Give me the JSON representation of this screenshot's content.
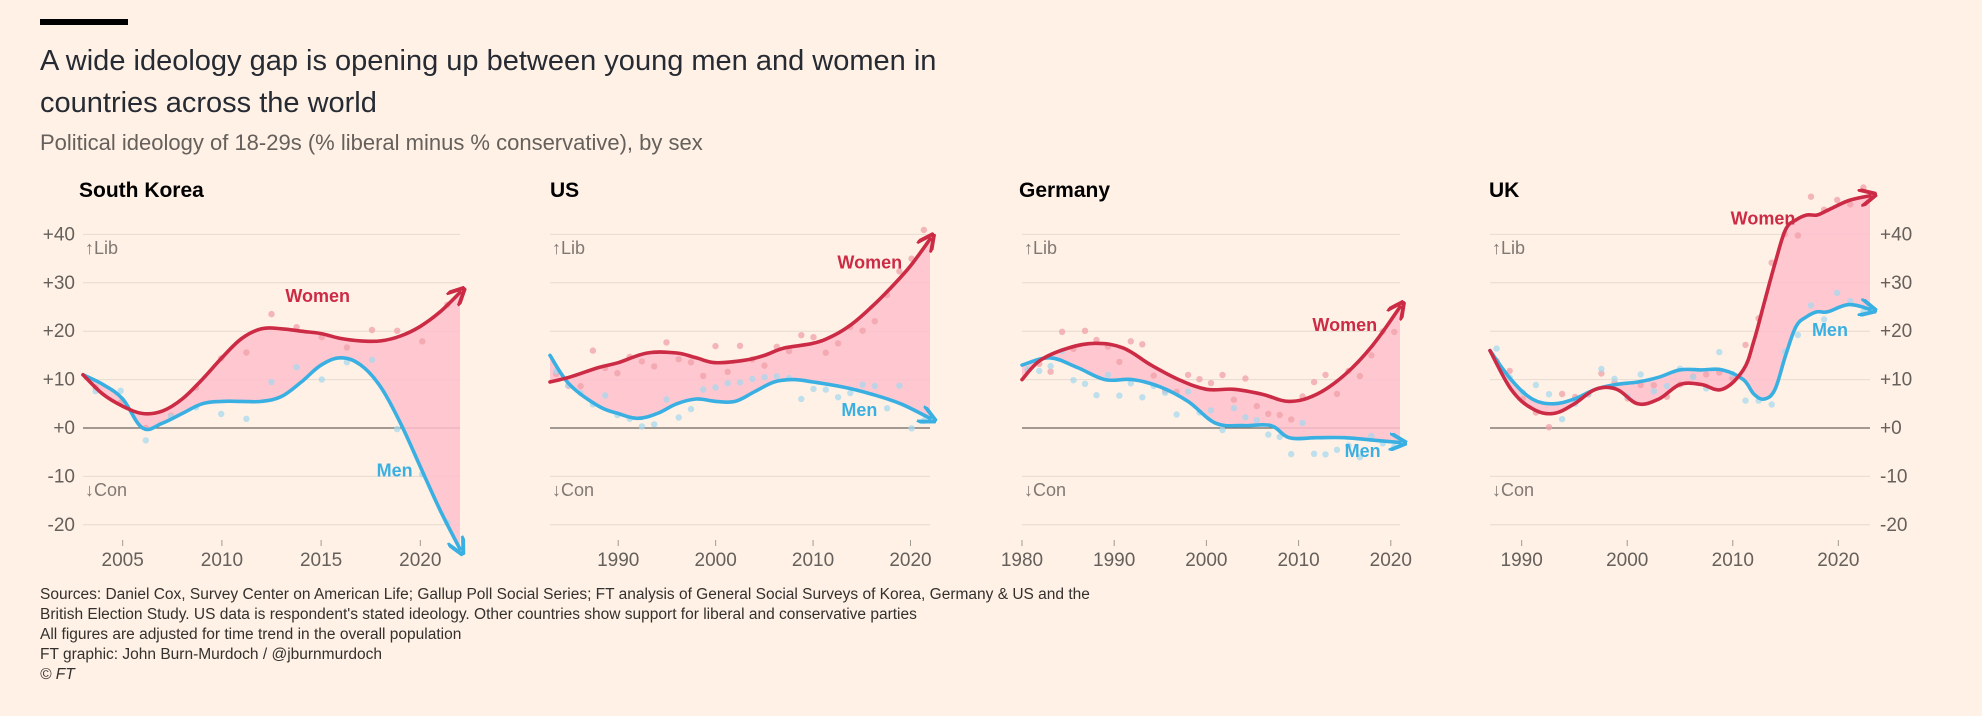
{
  "title": "A wide ideology gap is opening up between young men and women in countries across the world",
  "subtitle": "Political ideology of 18-29s (% liberal minus % conservative), by sex",
  "footer": {
    "sources": "Sources: Daniel Cox, Survey Center on American Life; Gallup Poll Social Series; FT analysis of General Social Surveys of Korea, Germany & US and the British Election Study. US data is respondent's stated ideology. Other countries show support for liberal and conservative parties",
    "adjustment_note": "All figures are adjusted for time trend in the overall population",
    "credit": "FT graphic: John Burn-Murdoch / @jburnmurdoch",
    "copyright": "© FT"
  },
  "colors": {
    "background": "#fff1e5",
    "women": "#cc2b45",
    "men": "#3ab0e2",
    "gap_fill": "#ffc0cc",
    "women_dots": "#f0a0a8",
    "men_dots": "#a8d8ee",
    "zero_line": "#6b6560",
    "gridline": "#e6dbd0"
  },
  "chart_data": [
    {
      "type": "line",
      "title": "South Korea",
      "y_ticks": [
        "+40",
        "+30",
        "+20",
        "+10",
        "+0",
        "-10",
        "-20"
      ],
      "y_tick_values": [
        40,
        30,
        20,
        10,
        0,
        -10,
        -20
      ],
      "y_axis_side": "left",
      "ylim": [
        -23,
        43
      ],
      "xlim": [
        2003,
        2022
      ],
      "x_ticks": [
        2005,
        2010,
        2015,
        2020
      ],
      "annotations": {
        "lib": "↑Lib",
        "con": "↓Con"
      },
      "series": [
        {
          "name": "Women",
          "x": [
            2003,
            2004,
            2005,
            2006,
            2007,
            2008,
            2009,
            2010,
            2011,
            2012,
            2013,
            2014,
            2015,
            2016,
            2017,
            2018,
            2019,
            2020,
            2021,
            2022
          ],
          "y": [
            11,
            7,
            4.5,
            3,
            3.5,
            6,
            10,
            14.5,
            18.5,
            20.5,
            20.5,
            20,
            19.5,
            18.5,
            18,
            18,
            19,
            21,
            24,
            28
          ]
        },
        {
          "name": "Men",
          "x": [
            2003,
            2004,
            2005,
            2006,
            2007,
            2008,
            2009,
            2010,
            2011,
            2012,
            2013,
            2014,
            2015,
            2016,
            2017,
            2018,
            2019,
            2020,
            2021,
            2022
          ],
          "y": [
            11,
            9,
            6,
            0,
            1,
            3,
            5,
            5.5,
            5.5,
            5.5,
            6.5,
            9.5,
            13,
            14.5,
            13,
            8.5,
            1,
            -8,
            -17,
            -25
          ]
        }
      ],
      "label_women": {
        "text": "Women",
        "x": 2013.2,
        "y": 26
      },
      "label_men": {
        "text": "Men",
        "x": 2017.8,
        "y": -10
      }
    },
    {
      "type": "line",
      "title": "US",
      "y_ticks": [],
      "y_tick_values": [
        40,
        30,
        20,
        10,
        0,
        -10,
        -20
      ],
      "ylim": [
        -23,
        43
      ],
      "xlim": [
        1983,
        2022
      ],
      "x_ticks": [
        1990,
        2000,
        2010,
        2020
      ],
      "annotations": {
        "lib": "↑Lib",
        "con": "↓Con"
      },
      "series": [
        {
          "name": "Women",
          "x": [
            1983,
            1985,
            1988,
            1990,
            1993,
            1996,
            1998,
            2000,
            2003,
            2005,
            2007,
            2010,
            2012,
            2014,
            2016,
            2018,
            2020,
            2022
          ],
          "y": [
            9.5,
            10.5,
            12.5,
            13.5,
            15.5,
            15.5,
            14.5,
            13.5,
            14,
            15,
            16.5,
            17.5,
            19,
            21.5,
            25,
            29,
            33.5,
            39
          ]
        },
        {
          "name": "Men",
          "x": [
            1983,
            1985,
            1988,
            1990,
            1992,
            1994,
            1996,
            1998,
            2000,
            2002,
            2004,
            2006,
            2008,
            2010,
            2013,
            2016,
            2019,
            2022
          ],
          "y": [
            15,
            9,
            4.5,
            3,
            2,
            3,
            5,
            6,
            5.5,
            5.5,
            7.5,
            9.5,
            10,
            9.5,
            8.5,
            7,
            5,
            2
          ]
        }
      ],
      "label_women": {
        "text": "Women",
        "x": 2012.5,
        "y": 33
      },
      "label_men": {
        "text": "Men",
        "x": 2012.9,
        "y": 2.5
      }
    },
    {
      "type": "line",
      "title": "Germany",
      "y_ticks": [],
      "y_tick_values": [
        40,
        30,
        20,
        10,
        0,
        -10,
        -20
      ],
      "ylim": [
        -23,
        43
      ],
      "xlim": [
        1980,
        2021
      ],
      "x_ticks": [
        1980,
        1990,
        2000,
        2010,
        2020
      ],
      "annotations": {
        "lib": "↑Lib",
        "con": "↓Con"
      },
      "series": [
        {
          "name": "Women",
          "x": [
            1980,
            1982,
            1985,
            1988,
            1991,
            1994,
            1997,
            2000,
            2003,
            2006,
            2009,
            2012,
            2015,
            2018,
            2021
          ],
          "y": [
            10,
            14,
            16.5,
            17.5,
            16.5,
            13,
            10,
            8,
            8,
            7,
            5.5,
            7,
            11,
            17,
            25
          ]
        },
        {
          "name": "Men",
          "x": [
            1980,
            1983,
            1986,
            1989,
            1992,
            1995,
            1998,
            2001,
            2004,
            2007,
            2009,
            2012,
            2015,
            2018,
            2021
          ],
          "y": [
            13,
            14.5,
            12.5,
            10,
            10,
            8.5,
            5.5,
            1,
            0.5,
            0.5,
            -2,
            -2,
            -2,
            -2.5,
            -3
          ]
        }
      ],
      "label_women": {
        "text": "Women",
        "x": 2011.5,
        "y": 20
      },
      "label_men": {
        "text": "Men",
        "x": 2015,
        "y": -6
      }
    },
    {
      "type": "line",
      "title": "UK",
      "y_ticks": [
        "+40",
        "+30",
        "+20",
        "+10",
        "+0",
        "-10",
        "-20"
      ],
      "y_tick_values": [
        40,
        30,
        20,
        10,
        0,
        -10,
        -20
      ],
      "y_axis_side": "right",
      "ylim": [
        -23,
        43
      ],
      "xlim": [
        1987,
        2023
      ],
      "x_ticks": [
        1990,
        2000,
        2010,
        2020
      ],
      "annotations": {
        "lib": "↑Lib",
        "con": "↓Con"
      },
      "series": [
        {
          "name": "Women",
          "x": [
            1987,
            1989,
            1991,
            1993,
            1995,
            1997,
            1999,
            2001,
            2003,
            2005,
            2007,
            2009,
            2011,
            2012,
            2013,
            2014,
            2015,
            2016,
            2017,
            2018,
            2019,
            2021,
            2023
          ],
          "y": [
            16,
            8,
            4,
            3,
            5,
            8,
            8,
            5,
            6,
            9,
            9,
            8,
            12,
            18,
            26,
            34,
            41,
            43,
            44,
            44,
            45,
            47,
            48
          ]
        },
        {
          "name": "Men",
          "x": [
            1987,
            1989,
            1991,
            1993,
            1995,
            1997,
            1999,
            2001,
            2003,
            2005,
            2007,
            2009,
            2011,
            2012,
            2013,
            2014,
            2015,
            2016,
            2017,
            2018,
            2019,
            2021,
            2023
          ],
          "y": [
            16,
            10,
            6,
            5,
            6,
            8,
            9,
            9.5,
            10.5,
            12,
            12,
            12,
            10,
            7,
            6,
            8,
            15,
            21,
            23,
            24,
            24,
            25.5,
            24.5
          ]
        }
      ],
      "label_women": {
        "text": "Women",
        "x": 2009.8,
        "y": 42
      },
      "label_men": {
        "text": "Men",
        "x": 2017.5,
        "y": 19
      }
    }
  ]
}
